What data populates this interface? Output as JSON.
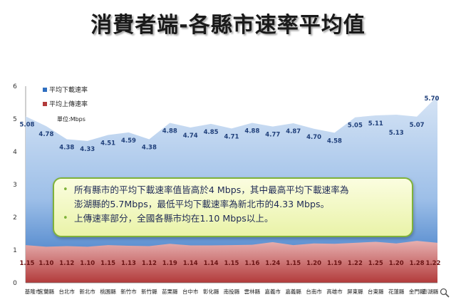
{
  "title": "消費者端-各縣市速率平均值",
  "legend": {
    "download_label": "平均下載速率",
    "upload_label": "平均上傳速率",
    "unit_label": "單位:Mbps"
  },
  "colors": {
    "download_fill": "#bcd3ee",
    "download_fill_dark": "#2f6fc0",
    "upload_fill": "#d98a8a",
    "upload_fill_dark": "#b23b3b",
    "download_label": "#1f3f7a",
    "upload_label": "#6b1414"
  },
  "chart_data": {
    "type": "area",
    "xlabel": "",
    "ylabel": "",
    "ylim": [
      0,
      6
    ],
    "yticks": [
      0,
      1,
      2,
      3,
      4,
      5,
      6
    ],
    "legend_position": "top-left",
    "grid": false,
    "categories": [
      "基隆市",
      "宜蘭縣",
      "台北市",
      "新北市",
      "桃園縣",
      "新竹市",
      "新竹縣",
      "苗栗縣",
      "台中市",
      "彰化縣",
      "南投縣",
      "雲林縣",
      "嘉義市",
      "嘉義縣",
      "台南市",
      "高雄市",
      "屏東縣",
      "台東縣",
      "花蓮縣",
      "金門縣",
      "澎湖縣"
    ],
    "series": [
      {
        "name": "平均下載速率",
        "values": [
          5.08,
          4.78,
          4.38,
          4.33,
          4.51,
          4.59,
          4.38,
          4.88,
          4.74,
          4.85,
          4.71,
          4.88,
          4.77,
          4.87,
          4.7,
          4.58,
          5.05,
          5.11,
          5.13,
          5.07,
          5.7
        ]
      },
      {
        "name": "平均上傳速率",
        "values": [
          1.15,
          1.1,
          1.12,
          1.1,
          1.15,
          1.13,
          1.12,
          1.19,
          1.14,
          1.14,
          1.15,
          1.16,
          1.24,
          1.15,
          1.2,
          1.19,
          1.22,
          1.25,
          1.2,
          1.28,
          1.22
        ]
      }
    ],
    "download_label_text": [
      "5.08",
      "4.78",
      "4.38",
      "4.33",
      "4.51",
      "4.59",
      "4.38",
      "4.88",
      "4.74",
      "4.85",
      "4.71",
      "4.88",
      "4.77",
      "4.87",
      "4.70",
      "4.58",
      "5.05",
      "5.11",
      "5.13",
      "5.07",
      "5.70"
    ],
    "upload_label_text": [
      "1.15",
      "1.10",
      "1.12",
      "1.10",
      "1.15",
      "1.13",
      "1.12",
      "1.19",
      "1.14",
      "1.14",
      "1.15",
      "1.16",
      "1.24",
      "1.15",
      "1.20",
      "1.19",
      "1.22",
      "1.25",
      "1.20",
      "1.28",
      "1.22"
    ]
  },
  "callout": {
    "line1": "所有縣市的平均下載速率值皆高於4  Mbps，其中最高平均下載速率為",
    "line2": "澎湖縣的5.7Mbps，最低平均下載速率為新北市的4.33  Mbps。",
    "line3": "上傳速率部分，全國各縣市均在1.10  Mbps以上。",
    "bullet": "•"
  },
  "icons": {
    "zoom": "magnifier-icon"
  }
}
